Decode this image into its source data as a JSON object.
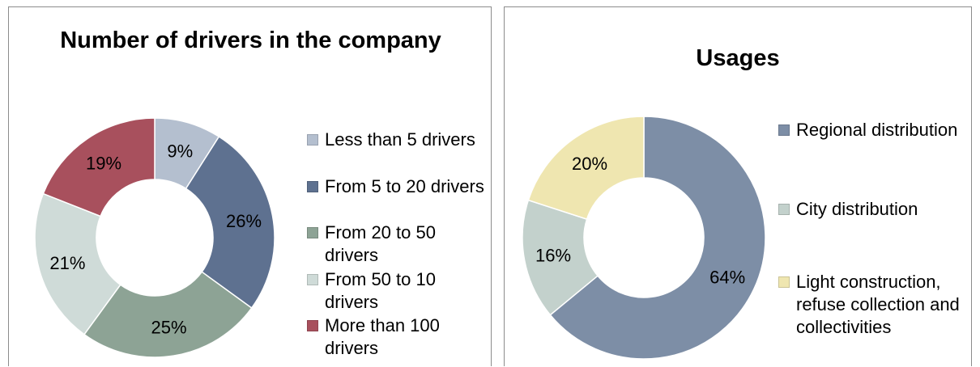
{
  "chart_data": [
    {
      "type": "pie",
      "title": "Number of drivers in the company",
      "categories": [
        "Less than 5 drivers",
        "From 5 to 20 drivers",
        "From 20 to 50 drivers",
        "From 50 to 10 drivers",
        "More than 100 drivers"
      ],
      "values": [
        9,
        26,
        25,
        21,
        19
      ],
      "labels": [
        "9%",
        "26%",
        "25%",
        "21%",
        "19%"
      ],
      "colors": [
        "#b4bfcf",
        "#5e7190",
        "#8da395",
        "#cfdbd8",
        "#a8505d"
      ],
      "legend": "right",
      "donut": true
    },
    {
      "type": "pie",
      "title": "Usages",
      "categories": [
        "Regional distribution",
        "City distribution",
        "Light construction, refuse collection and collectivities"
      ],
      "values": [
        64,
        16,
        20
      ],
      "labels": [
        "64%",
        "16%",
        "20%"
      ],
      "colors": [
        "#7d8ea6",
        "#c3d1cc",
        "#efe6b0"
      ],
      "legend": "right",
      "donut": true
    }
  ]
}
